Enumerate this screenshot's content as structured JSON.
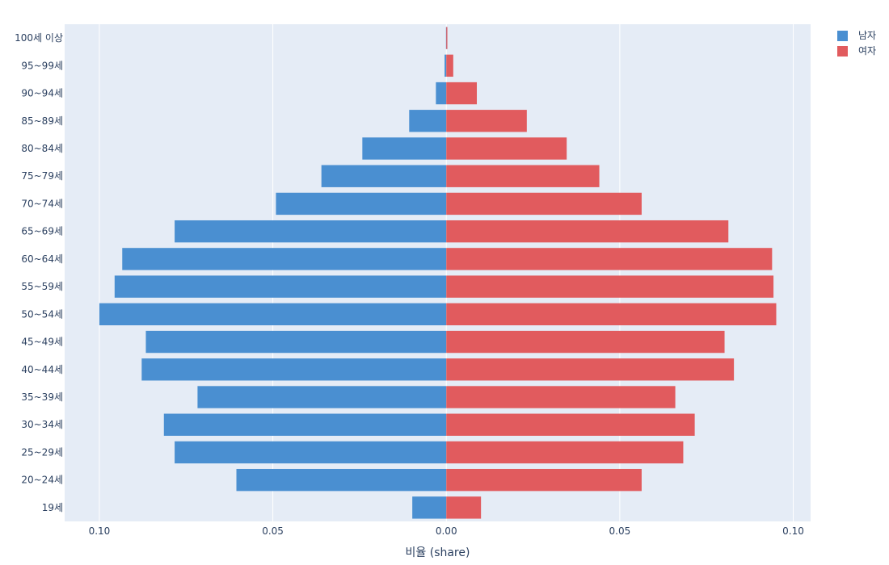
{
  "chart_data": {
    "type": "bar",
    "orientation": "horizontal",
    "layout": "population-pyramid",
    "title": "",
    "xlabel": "비율 (share)",
    "ylabel": "",
    "xlim": [
      -0.11,
      0.105
    ],
    "x_ticks": [
      -0.1,
      -0.05,
      0.0,
      0.05,
      0.1
    ],
    "x_tick_labels": [
      "0.10",
      "0.05",
      "0.00",
      "0.05",
      "0.10"
    ],
    "grid": true,
    "legend_position": "top-right",
    "categories": [
      "19세",
      "20~24세",
      "25~29세",
      "30~34세",
      "35~39세",
      "40~44세",
      "45~49세",
      "50~54세",
      "55~59세",
      "60~64세",
      "65~69세",
      "70~74세",
      "75~79세",
      "80~84세",
      "85~89세",
      "90~94세",
      "95~99세",
      "100세 이상"
    ],
    "series": [
      {
        "name": "남자",
        "color": "#4a8fd1",
        "values": [
          -0.0098,
          -0.0605,
          -0.0783,
          -0.0814,
          -0.0717,
          -0.0878,
          -0.0866,
          -0.1,
          -0.0956,
          -0.0934,
          -0.0783,
          -0.0491,
          -0.036,
          -0.0242,
          -0.0107,
          -0.003,
          -0.0005,
          -0.0001
        ]
      },
      {
        "name": "여자",
        "color": "#e15b5e",
        "values": [
          0.01,
          0.0563,
          0.0683,
          0.0716,
          0.066,
          0.0829,
          0.0802,
          0.0951,
          0.0943,
          0.0939,
          0.0813,
          0.0563,
          0.0441,
          0.0347,
          0.0232,
          0.0088,
          0.002,
          0.0003
        ]
      }
    ]
  }
}
